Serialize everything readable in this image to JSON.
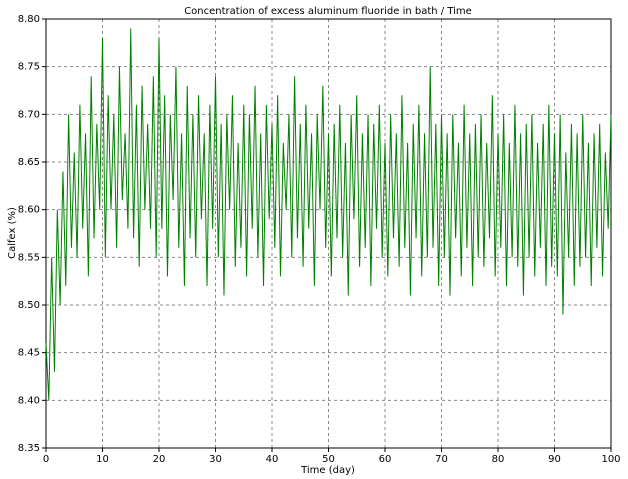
{
  "chart_data": {
    "type": "line",
    "title": "Concentration of excess aluminum fluoride in bath / Time",
    "xlabel": "Time (day)",
    "ylabel": "Calfex (%)",
    "xlim": [
      0,
      100
    ],
    "xticks": [
      0,
      10,
      20,
      30,
      40,
      50,
      60,
      70,
      80,
      90,
      100
    ],
    "ylim": [
      8.35,
      8.8
    ],
    "yticks": [
      8.35,
      {
        "value": 8.4,
        "label": "8.40"
      },
      8.45,
      {
        "value": 8.5,
        "label": "8.50"
      },
      8.55,
      {
        "value": 8.6,
        "label": "8.60"
      },
      8.65,
      {
        "value": 8.7,
        "label": "8.70"
      },
      8.75,
      {
        "value": 8.8,
        "label": "8.80"
      }
    ],
    "grid": true,
    "series": [
      {
        "color": "#008000",
        "x": [
          0,
          0.5,
          1,
          1.5,
          2,
          2.5,
          3,
          3.5,
          4,
          4.5,
          5,
          5.5,
          6,
          6.5,
          7,
          7.5,
          8,
          8.5,
          9,
          9.5,
          10,
          10.5,
          11,
          11.5,
          12,
          12.5,
          13,
          13.5,
          14,
          14.5,
          15,
          15.5,
          16,
          16.5,
          17,
          17.5,
          18,
          18.5,
          19,
          19.5,
          20,
          20.5,
          21,
          21.5,
          22,
          22.5,
          23,
          23.5,
          24,
          24.5,
          25,
          25.5,
          26,
          26.5,
          27,
          27.5,
          28,
          28.5,
          29,
          29.5,
          30,
          30.5,
          31,
          31.5,
          32,
          32.5,
          33,
          33.5,
          34,
          34.5,
          35,
          35.5,
          36,
          36.5,
          37,
          37.5,
          38,
          38.5,
          39,
          39.5,
          40,
          40.5,
          41,
          41.5,
          42,
          42.5,
          43,
          43.5,
          44,
          44.5,
          45,
          45.5,
          46,
          46.5,
          47,
          47.5,
          48,
          48.5,
          49,
          49.5,
          50,
          50.5,
          51,
          51.5,
          52,
          52.5,
          53,
          53.5,
          54,
          54.5,
          55,
          55.5,
          56,
          56.5,
          57,
          57.5,
          58,
          58.5,
          59,
          59.5,
          60,
          60.5,
          61,
          61.5,
          62,
          62.5,
          63,
          63.5,
          64,
          64.5,
          65,
          65.5,
          66,
          66.5,
          67,
          67.5,
          68,
          68.5,
          69,
          69.5,
          70,
          70.5,
          71,
          71.5,
          72,
          72.5,
          73,
          73.5,
          74,
          74.5,
          75,
          75.5,
          76,
          76.5,
          77,
          77.5,
          78,
          78.5,
          79,
          79.5,
          80,
          80.5,
          81,
          81.5,
          82,
          82.5,
          83,
          83.5,
          84,
          84.5,
          85,
          85.5,
          86,
          86.5,
          87,
          87.5,
          88,
          88.5,
          89,
          89.5,
          90,
          90.5,
          91,
          91.5,
          92,
          92.5,
          93,
          93.5,
          94,
          94.5,
          95,
          95.5,
          96,
          96.5,
          97,
          97.5,
          98,
          98.5,
          99,
          99.5,
          100
        ],
        "values": [
          8.46,
          8.4,
          8.55,
          8.43,
          8.6,
          8.5,
          8.64,
          8.52,
          8.7,
          8.56,
          8.66,
          8.55,
          8.71,
          8.58,
          8.68,
          8.53,
          8.74,
          8.57,
          8.69,
          8.6,
          8.78,
          8.55,
          8.72,
          8.6,
          8.7,
          8.56,
          8.75,
          8.61,
          8.68,
          8.58,
          8.79,
          8.57,
          8.71,
          8.54,
          8.73,
          8.6,
          8.69,
          8.58,
          8.74,
          8.55,
          8.78,
          8.58,
          8.72,
          8.53,
          8.7,
          8.61,
          8.75,
          8.56,
          8.68,
          8.52,
          8.73,
          8.57,
          8.7,
          8.55,
          8.72,
          8.59,
          8.68,
          8.52,
          8.71,
          8.58,
          8.74,
          8.55,
          8.69,
          8.51,
          8.7,
          8.6,
          8.72,
          8.54,
          8.67,
          8.56,
          8.71,
          8.53,
          8.7,
          8.58,
          8.73,
          8.55,
          8.68,
          8.52,
          8.71,
          8.59,
          8.69,
          8.56,
          8.72,
          8.53,
          8.67,
          8.6,
          8.7,
          8.55,
          8.74,
          8.57,
          8.69,
          8.54,
          8.71,
          8.58,
          8.68,
          8.52,
          8.7,
          8.6,
          8.73,
          8.56,
          8.68,
          8.53,
          8.69,
          8.57,
          8.71,
          8.55,
          8.67,
          8.51,
          8.7,
          8.59,
          8.72,
          8.54,
          8.68,
          8.56,
          8.7,
          8.52,
          8.69,
          8.58,
          8.71,
          8.55,
          8.67,
          8.53,
          8.7,
          8.57,
          8.68,
          8.54,
          8.72,
          8.56,
          8.67,
          8.51,
          8.69,
          8.57,
          8.71,
          8.53,
          8.68,
          8.55,
          8.75,
          8.56,
          8.69,
          8.52,
          8.7,
          8.55,
          8.68,
          8.51,
          8.7,
          8.57,
          8.67,
          8.53,
          8.71,
          8.56,
          8.68,
          8.52,
          8.69,
          8.55,
          8.7,
          8.54,
          8.67,
          8.57,
          8.72,
          8.53,
          8.68,
          8.56,
          8.7,
          8.52,
          8.67,
          8.55,
          8.71,
          8.54,
          8.68,
          8.51,
          8.69,
          8.55,
          8.7,
          8.53,
          8.67,
          8.56,
          8.69,
          8.52,
          8.71,
          8.54,
          8.68,
          8.53,
          8.7,
          8.49,
          8.66,
          8.55,
          8.69,
          8.52,
          8.68,
          8.54,
          8.7,
          8.55,
          8.67,
          8.52,
          8.68,
          8.56,
          8.69,
          8.53,
          8.66,
          8.58,
          8.7
        ]
      }
    ]
  }
}
